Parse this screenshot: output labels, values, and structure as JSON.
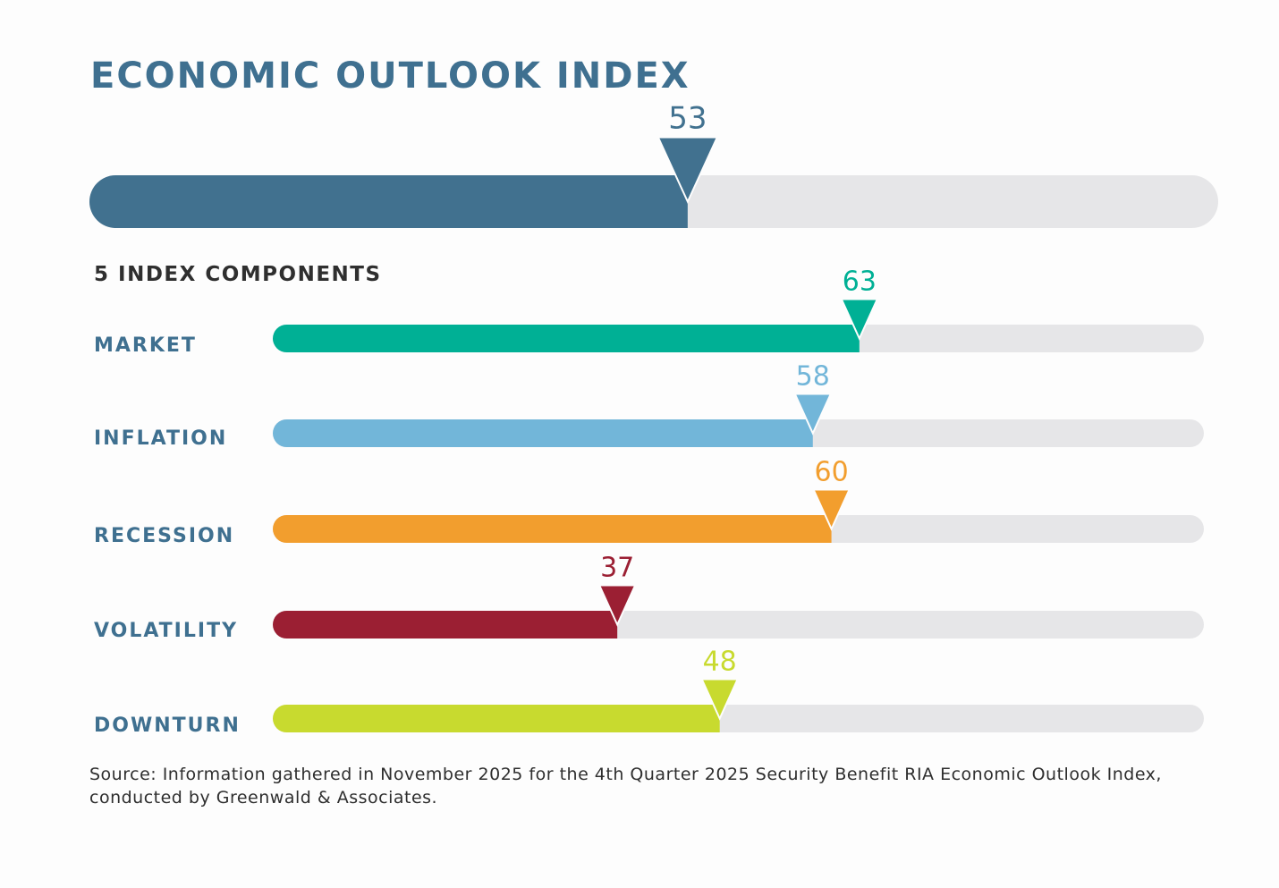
{
  "chart_data": {
    "type": "bar",
    "title": "ECONOMIC OUTLOOK INDEX",
    "subtitle": "5 INDEX COMPONENTS",
    "xlim": [
      0,
      100
    ],
    "grid": false,
    "main": {
      "value": 53,
      "color": "#41718f"
    },
    "categories": [
      "MARKET",
      "INFLATION",
      "RECESSION",
      "VOLATILITY",
      "DOWNTURN"
    ],
    "values": [
      63,
      58,
      60,
      37,
      48
    ],
    "colors": [
      "#00b095",
      "#72b6d9",
      "#f29e2e",
      "#9b1f33",
      "#c8da2f"
    ],
    "track_color": "#e6e6e8",
    "label_color": "#3f7090"
  },
  "source": "Source: Information gathered in November 2025 for the 4th Quarter 2025 Security Benefit RIA Economic Outlook Index, conducted by Greenwald & Associates."
}
